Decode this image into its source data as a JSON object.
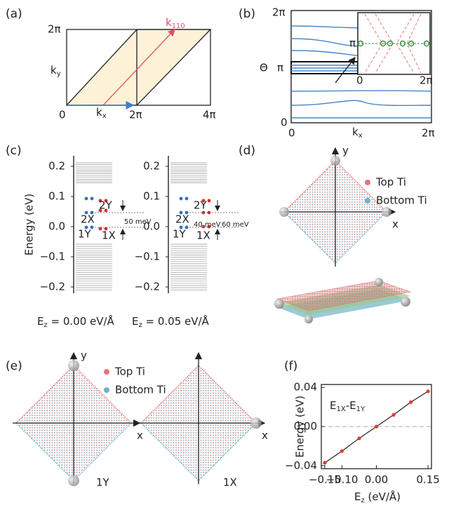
{
  "panels": {
    "a": {
      "label": "(a)",
      "y_top": "2π",
      "ky": {
        "base": "k",
        "sub": "y"
      },
      "origin": "0",
      "kx": {
        "base": "k",
        "sub": "x"
      },
      "x_mid": "2π",
      "x_right": "4π",
      "k110": {
        "base": "k",
        "sub": "110"
      }
    },
    "b": {
      "label": "(b)",
      "y_top": "2π",
      "y_mid": "π",
      "y_bottom": "0",
      "axis": "Θ",
      "x_left": "0",
      "kx": {
        "base": "k",
        "sub": "x"
      },
      "x_right": "2π",
      "inset": {
        "y": "π",
        "x_left": "0",
        "x_right": "2π"
      }
    },
    "c": {
      "label": "(c)",
      "ylabel": "Energy (eV)",
      "plots": [
        {
          "yticks": [
            "0.2",
            "0.1",
            "0.0",
            "−0.1",
            "−0.2"
          ],
          "levels": [
            "2Y",
            "2X",
            "1Y",
            "1X"
          ],
          "gaps": [
            "50 meV"
          ],
          "field": {
            "base": "E",
            "sub": "z",
            "rest": " = 0.00 eV/Å"
          }
        },
        {
          "yticks": [
            "0.2",
            "0.1",
            "0.0",
            "−0.1",
            "−0.2"
          ],
          "levels": [
            "2Y",
            "2X",
            "1Y",
            "1X"
          ],
          "gaps": [
            "40 meV",
            "60 meV"
          ],
          "field": {
            "base": "E",
            "sub": "z",
            "rest": " = 0.05 eV/Å"
          }
        }
      ]
    },
    "d": {
      "label": "(d)",
      "y": "y",
      "x": "x",
      "legend": [
        "Top Ti",
        "Bottom Ti"
      ]
    },
    "e": {
      "label": "(e)",
      "y": "y",
      "x": [
        "x",
        "x"
      ],
      "legend": [
        "Top Ti",
        "Bottom Ti"
      ],
      "states": [
        "1Y",
        "1X"
      ]
    },
    "f": {
      "label": "(f)"
    }
  },
  "chart_data": {
    "type": "line",
    "title": {
      "base": "E",
      "sub1": "1X",
      "mid": "-E",
      "sub2": "1Y"
    },
    "x_label": {
      "base": "E",
      "sub": "z",
      "rest": " (eV/Å)"
    },
    "y_label": "Energy (eV)",
    "x": [
      -0.15,
      -0.1,
      -0.05,
      0,
      0.05,
      0.1,
      0.15
    ],
    "series": [
      {
        "name": "E1X-E1Y",
        "color": "#e53935",
        "values": [
          -0.037,
          -0.025,
          -0.012,
          0.0,
          0.012,
          0.025,
          0.036
        ]
      }
    ],
    "xlim": [
      -0.16,
      0.16
    ],
    "ylim": [
      -0.043,
      0.043
    ],
    "xticks": [
      {
        "value": -0.15,
        "label": "−0.15"
      },
      {
        "value": -0.1,
        "label": "−0.10"
      },
      {
        "value": 0,
        "label": "0.00"
      },
      {
        "value": 0.15,
        "label": "0.15"
      }
    ],
    "yticks": [
      {
        "value": 0.04,
        "label": "0.04"
      },
      {
        "value": 0,
        "label": "0.00"
      },
      {
        "value": -0.04,
        "label": "−0.04"
      }
    ]
  }
}
